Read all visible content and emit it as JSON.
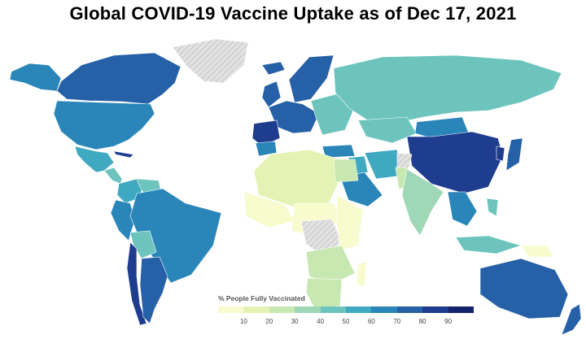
{
  "title": "Global COVID-19 Vaccine Uptake as of Dec 17, 2021",
  "legend": {
    "title": "% People Fully Vaccinated",
    "ticks": [
      "10",
      "20",
      "30",
      "40",
      "50",
      "60",
      "70",
      "80",
      "90"
    ],
    "colors": [
      "#f7fbcd",
      "#e4f3b4",
      "#c8e8b2",
      "#9fd8b7",
      "#6cc4bd",
      "#3fa9c2",
      "#2a86b8",
      "#2660a6",
      "#1f3d8f",
      "#14236b"
    ]
  },
  "no_data_color": "#d3d3d3",
  "regions": [
    {
      "name": "Canada",
      "value": 78
    },
    {
      "name": "Alaska",
      "value": 65
    },
    {
      "name": "Greenland",
      "value": null
    },
    {
      "name": "United States",
      "value": 61
    },
    {
      "name": "Mexico",
      "value": 55
    },
    {
      "name": "Central America",
      "value": 45
    },
    {
      "name": "Cuba",
      "value": 83
    },
    {
      "name": "Colombia",
      "value": 55
    },
    {
      "name": "Venezuela",
      "value": 45
    },
    {
      "name": "Peru",
      "value": 65
    },
    {
      "name": "Brazil",
      "value": 66
    },
    {
      "name": "Bolivia",
      "value": 40
    },
    {
      "name": "Chile",
      "value": 86
    },
    {
      "name": "Argentina",
      "value": 70
    },
    {
      "name": "Iceland",
      "value": 78
    },
    {
      "name": "UK",
      "value": 70
    },
    {
      "name": "Scandinavia",
      "value": 75
    },
    {
      "name": "Western Europe",
      "value": 76
    },
    {
      "name": "Iberia",
      "value": 82
    },
    {
      "name": "Eastern Europe",
      "value": 45
    },
    {
      "name": "Russia",
      "value": 45
    },
    {
      "name": "Kazakhstan",
      "value": 45
    },
    {
      "name": "Mongolia",
      "value": 65
    },
    {
      "name": "China",
      "value": 88
    },
    {
      "name": "Japan",
      "value": 78
    },
    {
      "name": "Korea",
      "value": 82
    },
    {
      "name": "Turkey",
      "value": 60
    },
    {
      "name": "Middle East",
      "value": 50
    },
    {
      "name": "Saudi Arabia",
      "value": 65
    },
    {
      "name": "Iran",
      "value": 55
    },
    {
      "name": "Afghanistan",
      "value": null
    },
    {
      "name": "Pakistan",
      "value": 25
    },
    {
      "name": "India",
      "value": 38
    },
    {
      "name": "Southeast Asia",
      "value": 65
    },
    {
      "name": "Indonesia",
      "value": 40
    },
    {
      "name": "Philippines",
      "value": 45
    },
    {
      "name": "North Africa",
      "value": 15
    },
    {
      "name": "Morocco",
      "value": 62
    },
    {
      "name": "Egypt",
      "value": 20
    },
    {
      "name": "West Africa",
      "value": 8
    },
    {
      "name": "Central Africa",
      "value": 5
    },
    {
      "name": "DR Congo",
      "value": null
    },
    {
      "name": "East Africa",
      "value": 8
    },
    {
      "name": "Southern Africa",
      "value": 20
    },
    {
      "name": "South Africa",
      "value": 28
    },
    {
      "name": "Madagascar",
      "value": 5
    },
    {
      "name": "Australia",
      "value": 76
    },
    {
      "name": "New Zealand",
      "value": 76
    },
    {
      "name": "Papua New Guinea",
      "value": 3
    }
  ]
}
